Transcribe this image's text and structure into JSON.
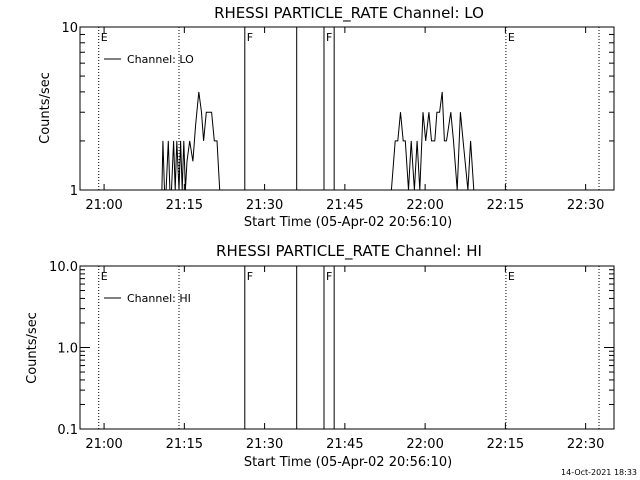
{
  "timestamp": "14-Oct-2021 18:33",
  "chart_data": [
    {
      "type": "line",
      "title": "RHESSI PARTICLE_RATE Channel: LO",
      "xlabel": "Start Time (05-Apr-02 20:56:10)",
      "ylabel": "Counts/sec",
      "yscale": "log",
      "ylim": [
        1,
        10
      ],
      "y_tick_labels": [
        "1",
        "10"
      ],
      "x_tick_labels": [
        "21:00",
        "21:15",
        "21:30",
        "21:45",
        "22:00",
        "22:15",
        "22:30"
      ],
      "xlim_minutes": [
        -1.0,
        34.0
      ],
      "legend": {
        "label": "Channel: LO",
        "position": "top-left"
      },
      "markers": [
        {
          "label": "E",
          "minute": -1.0,
          "style": "dotted"
        },
        {
          "label": "",
          "minute": 14.0,
          "style": "dotted"
        },
        {
          "label": "F",
          "minute": 26.3,
          "style": "solid"
        },
        {
          "label": "",
          "minute": 36.0,
          "style": "solid"
        },
        {
          "label": "F",
          "minute": 41.1,
          "style": "solid"
        },
        {
          "label": "",
          "minute": 43.0,
          "style": "solid"
        },
        {
          "label": "E",
          "minute": 75.1,
          "style": "dotted"
        },
        {
          "label": "",
          "minute": 92.5,
          "style": "dotted"
        }
      ],
      "series": [
        {
          "name": "Channel: LO",
          "x": [
            10.8,
            11.0,
            11.3,
            11.6,
            12.0,
            12.3,
            12.6,
            13.0,
            13.3,
            13.6,
            14.0,
            14.3,
            14.6,
            14.9,
            15.2,
            15.5,
            16.0,
            16.6,
            17.1,
            17.7,
            18.2,
            18.6,
            19.1,
            19.5,
            20.1,
            20.6,
            21.1,
            21.6,
            22.0,
            22.6,
            53.7,
            54.4,
            54.9,
            55.4,
            55.9,
            56.3,
            56.9,
            57.4,
            58.0,
            58.5,
            59.0,
            59.6,
            60.1,
            60.7,
            61.2,
            61.8,
            62.2,
            62.7,
            63.2,
            63.6,
            64.0,
            64.8,
            65.3,
            66.0,
            66.6,
            67.1,
            68.0,
            68.5,
            69.1,
            69.5
          ],
          "y": [
            1,
            2,
            1,
            1,
            2,
            1,
            1,
            2,
            1,
            2,
            1,
            2,
            1,
            2,
            1,
            1.5,
            2,
            1.5,
            2.5,
            4,
            3,
            2,
            3,
            3,
            3,
            2,
            2,
            1,
            1,
            1,
            1,
            2,
            2,
            3,
            2,
            2,
            1,
            2,
            1,
            2,
            1,
            3,
            2,
            3,
            2,
            2,
            3,
            3,
            4,
            2,
            2,
            3,
            2,
            1,
            3,
            2,
            1,
            2,
            1,
            1
          ]
        }
      ]
    },
    {
      "type": "line",
      "title": "RHESSI PARTICLE_RATE Channel: HI",
      "xlabel": "Start Time (05-Apr-02 20:56:10)",
      "ylabel": "Counts/sec",
      "yscale": "log",
      "ylim": [
        0.1,
        10
      ],
      "y_tick_labels": [
        "0.1",
        "1.0",
        "10.0"
      ],
      "x_tick_labels": [
        "21:00",
        "21:15",
        "21:30",
        "21:45",
        "22:00",
        "22:15",
        "22:30"
      ],
      "xlim_minutes": [
        -1.0,
        34.0
      ],
      "legend": {
        "label": "Channel: HI",
        "position": "top-left"
      },
      "markers": [
        {
          "label": "E",
          "minute": -1.0,
          "style": "dotted"
        },
        {
          "label": "",
          "minute": 14.0,
          "style": "dotted"
        },
        {
          "label": "F",
          "minute": 26.3,
          "style": "solid"
        },
        {
          "label": "",
          "minute": 36.0,
          "style": "solid"
        },
        {
          "label": "F",
          "minute": 41.1,
          "style": "solid"
        },
        {
          "label": "",
          "minute": 43.0,
          "style": "solid"
        },
        {
          "label": "E",
          "minute": 75.1,
          "style": "dotted"
        },
        {
          "label": "",
          "minute": 92.5,
          "style": "dotted"
        }
      ],
      "series": [
        {
          "name": "Channel: HI",
          "x": [],
          "y": []
        }
      ]
    }
  ]
}
